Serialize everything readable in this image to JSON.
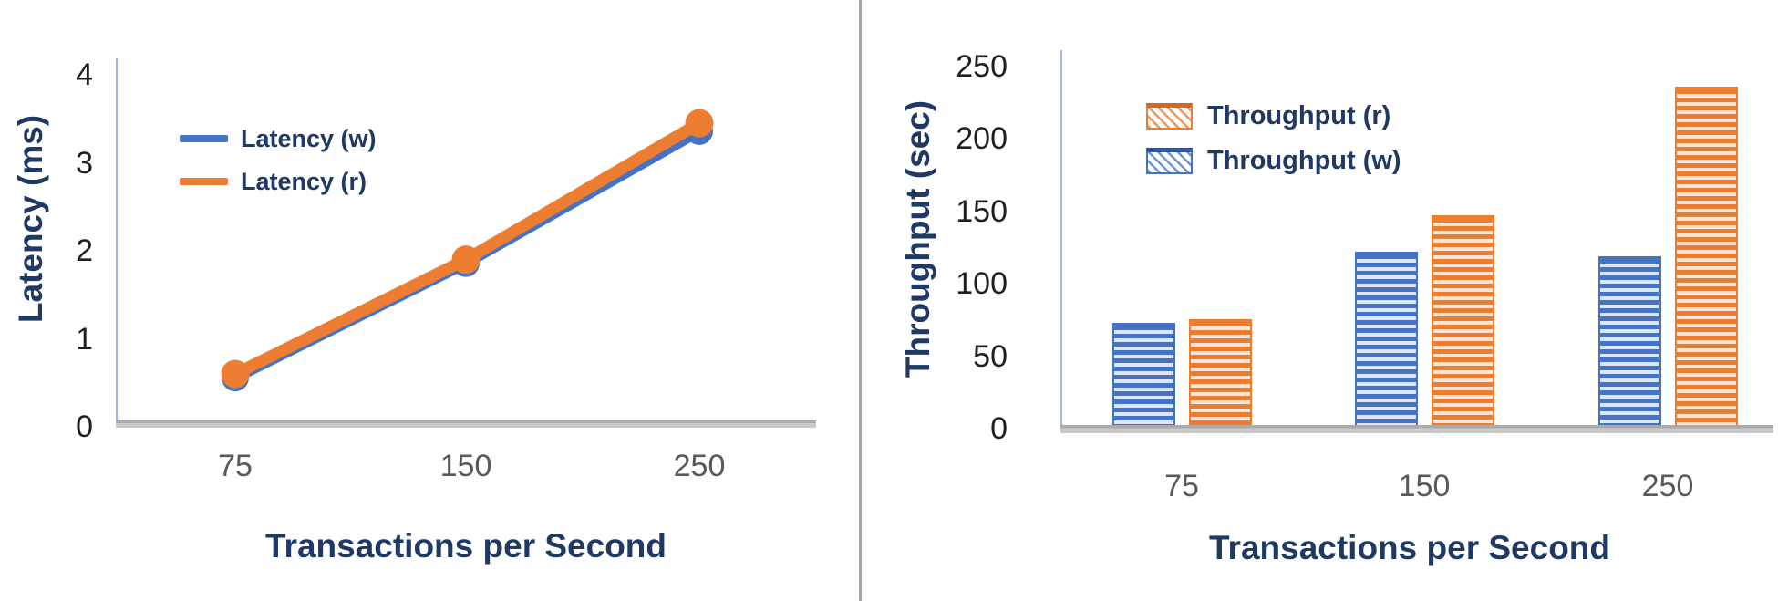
{
  "figure": {
    "description": "Two performance charts: latency line chart and throughput bar chart"
  },
  "colors": {
    "series_blue": "#4472C4",
    "series_orange": "#ED7D31",
    "axis_title_navy": "#1F3864",
    "tick_black": "#1f1f1f",
    "tick_gray": "#595959",
    "axis_line_blue": "#9FB9E2",
    "baseline_gray": "#BFBFBF",
    "divider_gray": "#A6A6A6"
  },
  "left_chart": {
    "y_axis_label": "Latency (ms)",
    "x_axis_label": "Transactions per Second",
    "legend": [
      {
        "label": "Latency (w)",
        "color": "#4472C4"
      },
      {
        "label": "Latency (r)",
        "color": "#ED7D31"
      }
    ]
  },
  "right_chart": {
    "y_axis_label": "Throughput (sec)",
    "x_axis_label": "Transactions per Second",
    "legend": [
      {
        "label": "Throughput (r)",
        "color": "#ED7D31"
      },
      {
        "label": "Throughput (w)",
        "color": "#4472C4"
      }
    ]
  },
  "chart_data": [
    {
      "type": "line",
      "title": "",
      "categories": [
        "75",
        "150",
        "250"
      ],
      "series": [
        {
          "name": "Latency (w)",
          "color": "#4472C4",
          "values": [
            0.6,
            1.9,
            3.4
          ]
        },
        {
          "name": "Latency (r)",
          "color": "#ED7D31",
          "values": [
            0.6,
            1.9,
            3.45
          ]
        }
      ],
      "xlabel": "Transactions per Second",
      "ylabel": "Latency (ms)",
      "ylim": [
        0,
        4
      ],
      "y_ticks": [
        0,
        1,
        2,
        3,
        4
      ],
      "grid": false,
      "legend_position": "upper-left-inside",
      "markers": "filled-circle-on-read-series",
      "note": "write and read latency lines overlap almost exactly; orange read line drawn on top"
    },
    {
      "type": "bar",
      "title": "",
      "categories": [
        "75",
        "150",
        "250"
      ],
      "series": [
        {
          "name": "Throughput (w)",
          "color": "#4472C4",
          "hatch": "horizontal-stripes",
          "values": [
            72,
            121,
            118
          ]
        },
        {
          "name": "Throughput (r)",
          "color": "#ED7D31",
          "hatch": "horizontal-stripes",
          "values": [
            74,
            146,
            235
          ]
        }
      ],
      "xlabel": "Transactions per Second",
      "ylabel": "Throughput (sec)",
      "ylim": [
        0,
        250
      ],
      "y_ticks": [
        0,
        50,
        100,
        150,
        200,
        250
      ],
      "grid": false,
      "legend_position": "upper-left-inside"
    }
  ]
}
